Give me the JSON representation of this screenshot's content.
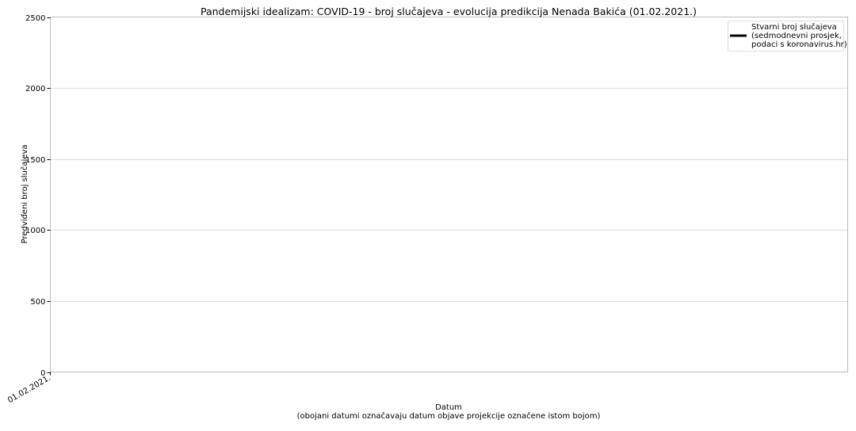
{
  "chart_data": {
    "type": "line",
    "title": "Pandemijski idealizam: COVID-19 - broj slučajeva - evolucija predikcija Nenada Bakića (01.02.2021.)",
    "xlabel": "Datum",
    "xlabel_note": "(obojani datumi označavaju datum objave projekcije označene istom bojom)",
    "ylabel": "Predviđeni broj slučajeva",
    "ylim": [
      0,
      2500
    ],
    "yticks": [
      0,
      500,
      1000,
      1500,
      2000,
      2500
    ],
    "ytick_labels": [
      "0",
      "500",
      "1000",
      "1500",
      "2000",
      "2500"
    ],
    "xtick_labels": [
      "01.02.2021."
    ],
    "grid": "horizontal",
    "legend_position": "top-right",
    "legend": [
      {
        "label_lines": [
          "Stvarni broj slučajeva",
          "(sedmodnevni prosjek,",
          "podaci s koronavirus.hr)"
        ],
        "color": "#000000"
      }
    ],
    "series": [
      {
        "name": "Stvarni broj slučajeva (sedmodnevni prosjek, podaci s koronavirus.hr)",
        "color": "#000000",
        "values": []
      }
    ]
  }
}
